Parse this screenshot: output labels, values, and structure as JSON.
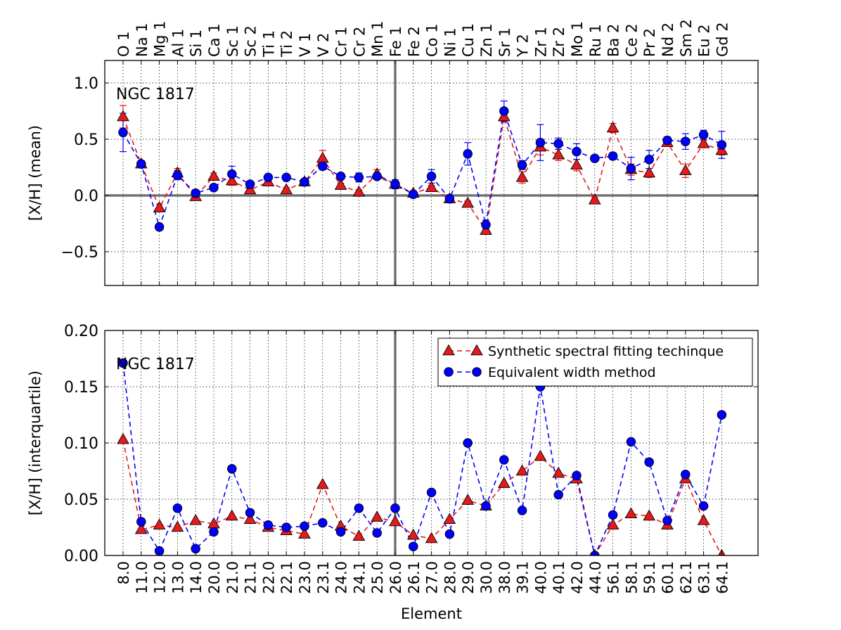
{
  "chart_data": [
    {
      "type": "line",
      "title": "",
      "annotation": "NGC 1817",
      "ylabel": "[X/H] (mean)",
      "xlabel": "",
      "ylim": [
        -0.8,
        1.2
      ],
      "yticks": [
        -0.5,
        0.0,
        0.5,
        1.0
      ],
      "ytick_labels": [
        "−0.5",
        "0.0",
        "0.5",
        "1.0"
      ],
      "grid": true,
      "top_labels": [
        "O 1",
        "Na 1",
        "Mg 1",
        "Al 1",
        "Si 1",
        "Ca 1",
        "Sc 1",
        "Sc 2",
        "Ti 1",
        "Ti 2",
        "V 1",
        "V 2",
        "Cr 1",
        "Cr 2",
        "Mn 1",
        "Fe 1",
        "Fe 2",
        "Co 1",
        "Ni 1",
        "Cu 1",
        "Zn 1",
        "Sr 1",
        "Y 2",
        "Zr 1",
        "Zr 2",
        "Mo 1",
        "Ru 1",
        "Ba 2",
        "Ce 2",
        "Pr 2",
        "Nd 2",
        "Sm 2",
        "Eu 2",
        "Gd 2"
      ],
      "reference_line_y": 0.0,
      "reference_line_x_index": 15,
      "series": [
        {
          "name": "Synthetic spectral fitting techinque",
          "color": "#e41a1c",
          "marker": "triangle",
          "values": [
            0.7,
            0.28,
            -0.11,
            0.2,
            -0.01,
            0.17,
            0.13,
            0.05,
            0.12,
            0.05,
            0.12,
            0.33,
            0.09,
            0.03,
            0.19,
            0.1,
            0.02,
            0.07,
            -0.03,
            -0.07,
            -0.31,
            0.7,
            0.16,
            0.43,
            0.36,
            0.27,
            -0.04,
            0.6,
            0.23,
            0.2,
            0.47,
            0.22,
            0.46,
            0.4
          ],
          "errors": [
            0.1,
            0.03,
            0.03,
            0.04,
            0.02,
            0.03,
            0.04,
            0.03,
            0.02,
            0.02,
            0.02,
            0.07,
            0.02,
            0.02,
            0.04,
            0.03,
            0.02,
            0.02,
            0.02,
            0.02,
            0.03,
            0.05,
            0.05,
            0.07,
            0.05,
            0.05,
            0.02,
            0.04,
            0.05,
            0.04,
            0.03,
            0.06,
            0.03,
            0.04
          ]
        },
        {
          "name": "Equivalent width method",
          "color": "#0000ff",
          "marker": "circle",
          "values": [
            0.56,
            0.28,
            -0.28,
            0.18,
            0.02,
            0.07,
            0.19,
            0.1,
            0.16,
            0.16,
            0.12,
            0.26,
            0.17,
            0.16,
            0.17,
            0.1,
            0.01,
            0.17,
            -0.03,
            0.37,
            -0.26,
            0.75,
            0.27,
            0.47,
            0.46,
            0.39,
            0.33,
            0.35,
            0.24,
            0.32,
            0.49,
            0.48,
            0.54,
            0.45
          ],
          "errors": [
            0.17,
            0.02,
            0.02,
            0.04,
            0.01,
            0.02,
            0.07,
            0.02,
            0.02,
            0.02,
            0.02,
            0.03,
            0.02,
            0.04,
            0.02,
            0.04,
            0.01,
            0.06,
            0.03,
            0.1,
            0.04,
            0.09,
            0.04,
            0.16,
            0.05,
            0.07,
            0.01,
            0.03,
            0.1,
            0.08,
            0.03,
            0.07,
            0.04,
            0.12
          ]
        }
      ]
    },
    {
      "type": "line",
      "title": "",
      "annotation": "NGC 1817",
      "ylabel": "[X/H] (interquartile)",
      "xlabel": "Element",
      "ylim": [
        0.0,
        0.2
      ],
      "yticks": [
        0.0,
        0.05,
        0.1,
        0.15,
        0.2
      ],
      "ytick_labels": [
        "0.00",
        "0.05",
        "0.10",
        "0.15",
        "0.20"
      ],
      "grid": true,
      "categories": [
        "8.0",
        "11.0",
        "12.0",
        "13.0",
        "14.0",
        "20.0",
        "21.0",
        "21.1",
        "22.0",
        "22.1",
        "23.0",
        "23.1",
        "24.0",
        "24.1",
        "25.0",
        "26.0",
        "26.1",
        "27.0",
        "28.0",
        "29.0",
        "30.0",
        "38.0",
        "39.1",
        "40.0",
        "40.1",
        "42.0",
        "44.0",
        "56.1",
        "58.1",
        "59.1",
        "60.1",
        "62.1",
        "63.1",
        "64.1"
      ],
      "reference_line_x_index": 15,
      "legend": "top-right",
      "series": [
        {
          "name": "Synthetic spectral fitting techinque",
          "color": "#e41a1c",
          "marker": "triangle",
          "values": [
            0.103,
            0.023,
            0.027,
            0.025,
            0.031,
            0.028,
            0.035,
            0.032,
            0.025,
            0.022,
            0.019,
            0.063,
            0.026,
            0.017,
            0.034,
            0.03,
            0.018,
            0.015,
            0.032,
            0.049,
            0.044,
            0.064,
            0.075,
            0.088,
            0.073,
            0.068,
            0.0,
            0.027,
            0.037,
            0.035,
            0.027,
            0.068,
            0.031,
            0.0
          ]
        },
        {
          "name": "Equivalent width method",
          "color": "#0000ff",
          "marker": "circle",
          "values": [
            0.171,
            0.03,
            0.004,
            0.042,
            0.006,
            0.021,
            0.077,
            0.038,
            0.027,
            0.025,
            0.026,
            0.029,
            0.021,
            0.042,
            0.02,
            0.042,
            0.008,
            0.056,
            0.019,
            0.1,
            0.044,
            0.085,
            0.04,
            0.15,
            0.054,
            0.071,
            0.0,
            0.036,
            0.101,
            0.083,
            0.031,
            0.072,
            0.044,
            0.125
          ]
        }
      ]
    }
  ]
}
